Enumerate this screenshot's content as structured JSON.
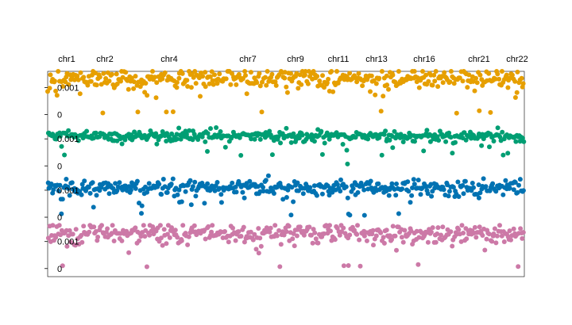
{
  "chart_data": {
    "type": "scatter",
    "title": "",
    "xlabel": "",
    "ylabel": "",
    "grid": false,
    "chromosome_labels": [
      "chr1",
      "chr2",
      "chr4",
      "chr7",
      "chr9",
      "chr11",
      "chr13",
      "chr16",
      "chr21",
      "chr22"
    ],
    "chromosome_positions": [
      0.04,
      0.12,
      0.255,
      0.42,
      0.52,
      0.61,
      0.69,
      0.79,
      0.905,
      0.985
    ],
    "x_range": [
      0,
      1
    ],
    "tracks": [
      {
        "color": "#E69F00",
        "y_ticks": [
          "0.001",
          "0"
        ],
        "ylim": [
          -0.0003,
          0.0016
        ],
        "base": 0.00135,
        "spread": 0.00018
      },
      {
        "color": "#009E73",
        "y_ticks": [
          "0.001",
          "0"
        ],
        "ylim": [
          -0.0003,
          0.0016
        ],
        "base": 0.0011,
        "spread": 0.0001
      },
      {
        "color": "#0072B2",
        "y_ticks": [
          "0.001",
          "0"
        ],
        "ylim": [
          -0.0003,
          0.0016
        ],
        "base": 0.0011,
        "spread": 0.00014
      },
      {
        "color": "#CC79A7",
        "y_ticks": [
          "0.001",
          "0"
        ],
        "ylim": [
          -0.0003,
          0.0016
        ],
        "base": 0.0013,
        "spread": 0.00018
      }
    ],
    "points_per_track": 420
  }
}
